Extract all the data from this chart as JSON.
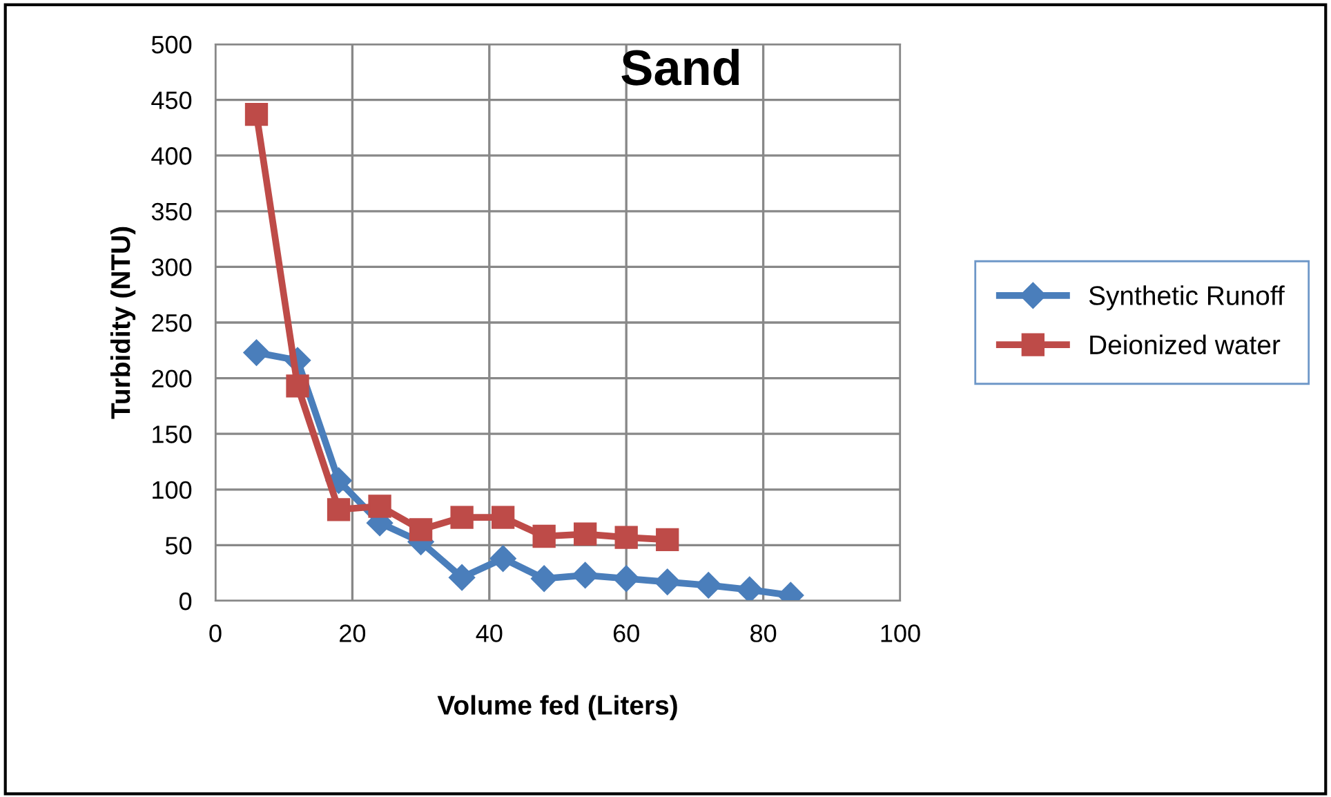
{
  "chart_data": {
    "type": "line",
    "title": "Sand",
    "xlabel": "Volume fed (Liters)",
    "ylabel": "Turbidity (NTU)",
    "x": [
      6,
      12,
      18,
      24,
      30,
      36,
      42,
      48,
      54,
      60,
      66,
      72,
      78,
      84
    ],
    "series": [
      {
        "name": "Synthetic Runoff",
        "color": "#4a7ebb",
        "marker": "diamond",
        "values": [
          223,
          216,
          108,
          70,
          53,
          21,
          38,
          20,
          23,
          20,
          17,
          14,
          10,
          5
        ]
      },
      {
        "name": "Deionized water",
        "color": "#be4b48",
        "marker": "square",
        "values": [
          437,
          193,
          82,
          85,
          64,
          75,
          75,
          58,
          60,
          57,
          55,
          null,
          null,
          null
        ]
      }
    ],
    "xlim": [
      0,
      100
    ],
    "xticks": [
      0,
      20,
      40,
      60,
      80,
      100
    ],
    "ylim": [
      0,
      500
    ],
    "yticks": [
      0,
      50,
      100,
      150,
      200,
      250,
      300,
      350,
      400,
      450,
      500
    ],
    "grid": true,
    "legend": "right",
    "line_style": "solid"
  }
}
